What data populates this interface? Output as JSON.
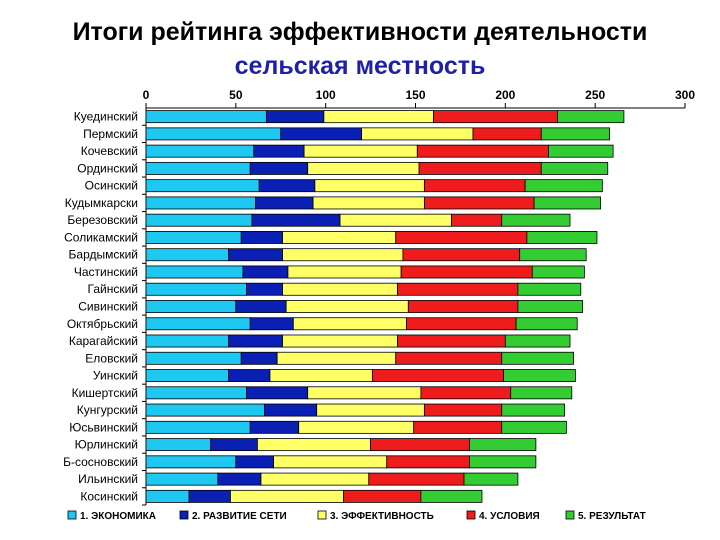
{
  "title": "Итоги рейтинга эффективности деятельности",
  "subtitle": "сельская местность",
  "chart_data": {
    "type": "bar",
    "orientation": "horizontal",
    "stacked": true,
    "xlim": [
      0,
      300
    ],
    "xticks": [
      0,
      50,
      100,
      150,
      200,
      250,
      300
    ],
    "x_axis_position": "top",
    "grid": false,
    "legend_position": "bottom",
    "categories": [
      "Куединский",
      "Пермский",
      "Кочевский",
      "Ординский",
      "Осинский",
      "Кудымкарски",
      "Березовский",
      "Соликамский",
      "Бардымский",
      "Частинский",
      "Гайнский",
      "Сивинский",
      "Октябрьский",
      "Карагайский",
      "Еловский",
      "Уинский",
      "Кишертский",
      "Кунгурский",
      "Юсьвинский",
      "Юрлинский",
      "Б-сосновский",
      "Ильинский",
      "Косинский"
    ],
    "series": [
      {
        "name": "1. ЭКОНОМИКА",
        "color": "#1ec8f0",
        "values": [
          67,
          75,
          60,
          58,
          63,
          61,
          59,
          53,
          46,
          54,
          56,
          50,
          58,
          46,
          53,
          46,
          56,
          66,
          58,
          36,
          50,
          40,
          24
        ]
      },
      {
        "name": "2. РАЗВИТИЕ СЕТИ",
        "color": "#0a1fb4",
        "values": [
          32,
          45,
          28,
          32,
          31,
          32,
          49,
          23,
          30,
          25,
          20,
          28,
          24,
          30,
          20,
          23,
          34,
          29,
          27,
          26,
          21,
          24,
          23
        ]
      },
      {
        "name": "3. ЭФФЕКТИВНОСТЬ",
        "color": "#ffff66",
        "values": [
          61,
          62,
          63,
          62,
          61,
          62,
          62,
          63,
          67,
          63,
          64,
          68,
          63,
          64,
          66,
          57,
          63,
          60,
          64,
          63,
          63,
          60,
          63
        ]
      },
      {
        "name": "4. УСЛОВИЯ",
        "color": "#ee1c1c",
        "values": [
          69,
          38,
          73,
          68,
          56,
          61,
          28,
          73,
          65,
          73,
          67,
          61,
          61,
          60,
          59,
          73,
          50,
          43,
          49,
          55,
          46,
          53,
          43
        ]
      },
      {
        "name": "5. РЕЗУЛЬТАТ",
        "color": "#33cc33",
        "values": [
          37,
          38,
          36,
          37,
          43,
          37,
          38,
          39,
          37,
          29,
          35,
          36,
          34,
          36,
          40,
          40,
          34,
          35,
          36,
          37,
          37,
          30,
          34
        ]
      }
    ]
  }
}
